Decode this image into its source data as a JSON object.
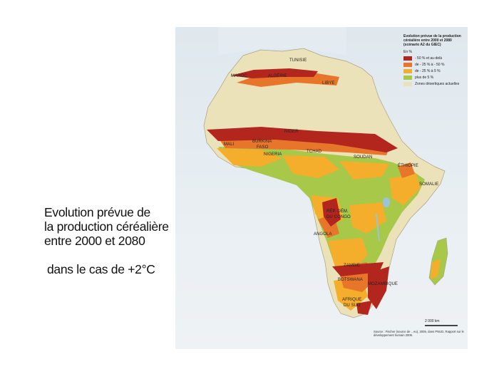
{
  "caption": {
    "line1": "Evolution prévue de",
    "line2": "la production céréalière",
    "line3": "entre 2000 et 2080",
    "scenario": "dans le cas de +2°C"
  },
  "map": {
    "legend": {
      "title": "Evolution prévue de la production céréalière entre 2000 et 2080 (scénario A2 du GIEC)",
      "unit": "En %",
      "items": [
        {
          "label": "- 50 % et au-delà",
          "color": "#b3261e"
        },
        {
          "label": "de - 25 % à - 50 %",
          "color": "#e8762a"
        },
        {
          "label": "de - 25 % à 5 %",
          "color": "#f5ad2c"
        },
        {
          "label": "plus de 5 %",
          "color": "#a8c84a"
        },
        {
          "label": "Zones désertiques actuelles",
          "color": "#ece2b9"
        }
      ]
    },
    "countries": {
      "tunisie": "TUNISIE",
      "maroc": "MAROC",
      "algerie": "ALGÉRIE",
      "libye": "LIBYE",
      "niger": "NIGER",
      "mali": "MALI",
      "burkina": "BURKINA",
      "faso": "FASO",
      "nigeria": "NIGERIA",
      "tchad": "TCHAD",
      "soudan": "SOUDAN",
      "ethiopie": "ÉTHIOPIE",
      "somalie": "SOMALIE",
      "rdc1": "RÉP. DÉM.",
      "rdc2": "DU CONGO",
      "angola": "ANGOLA",
      "zambie": "ZAMBIE",
      "botswana": "BOTSWANA",
      "mozambique": "MOZAMBIQUE",
      "afs1": "AFRIQUE",
      "afs2": "DU SUD"
    },
    "scale": "2 000 km",
    "source": "Source : Fischer (source de .. eu), 2005, dans PNUD, Rapport sur le développement humain 2006."
  }
}
